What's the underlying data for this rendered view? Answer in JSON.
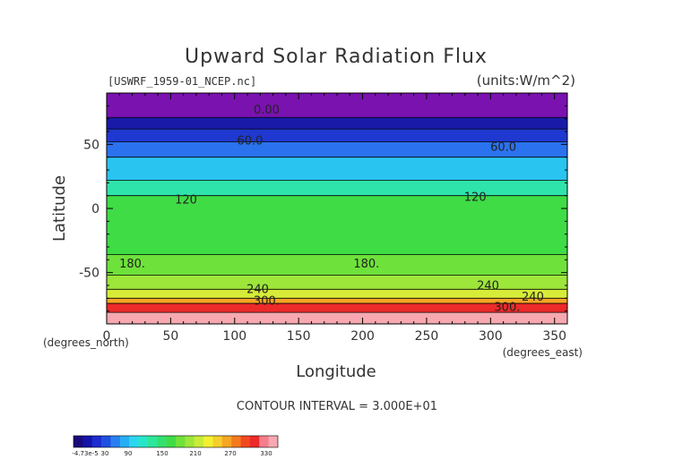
{
  "chart_data": {
    "type": "heatmap",
    "title": "Upward Solar Radiation Flux",
    "dataset": "[USWRF_1959-01_NCEP.nc]",
    "units": "(units:W/m^2)",
    "xlabel": "Longitude",
    "ylabel": "Latitude",
    "x_unit": "(degrees_east)",
    "y_unit": "(degrees_north)",
    "xlim": [
      0,
      360
    ],
    "ylim": [
      -90,
      90
    ],
    "x_ticks": [
      "0",
      "50",
      "100",
      "150",
      "200",
      "250",
      "300",
      "350"
    ],
    "y_ticks": [
      "50",
      "0",
      "-50"
    ],
    "contour_interval": "CONTOUR INTERVAL = 3.000E+01",
    "contour_labels": [
      {
        "text": "0.00",
        "lon": 125,
        "lat": 74
      },
      {
        "text": "60.0",
        "lon": 112,
        "lat": 50
      },
      {
        "text": "60.0",
        "lon": 310,
        "lat": 45
      },
      {
        "text": "120",
        "lon": 62,
        "lat": 4
      },
      {
        "text": "120",
        "lon": 288,
        "lat": 6
      },
      {
        "text": "180.",
        "lon": 20,
        "lat": -46
      },
      {
        "text": "180.",
        "lon": 203,
        "lat": -46
      },
      {
        "text": "240",
        "lon": 118,
        "lat": -66
      },
      {
        "text": "300.",
        "lon": 125,
        "lat": -75
      },
      {
        "text": "240",
        "lon": 298,
        "lat": -63
      },
      {
        "text": "240",
        "lon": 333,
        "lat": -72
      },
      {
        "text": "300.",
        "lon": 313,
        "lat": -80
      }
    ],
    "colorbar": {
      "labels": [
        "-4.73e-5",
        "30",
        "90",
        "150",
        "210",
        "270",
        "330"
      ],
      "colors": [
        "#1a0a7a",
        "#1414a8",
        "#1c2ccf",
        "#1f4fe0",
        "#2a7ff0",
        "#27aef5",
        "#2bd6f0",
        "#27e6c8",
        "#2ee69a",
        "#33e070",
        "#3fdc46",
        "#6ee13a",
        "#9de63a",
        "#c9ec38",
        "#f2f032",
        "#f5cf2c",
        "#f5a624",
        "#f47a1e",
        "#f24a1e",
        "#ec2a2a",
        "#f57d8c",
        "#f7a8b0"
      ]
    },
    "bands": [
      {
        "lat_top": 90,
        "lat_bot": 71,
        "value": 0,
        "color": "#7a12b0"
      },
      {
        "lat_top": 71,
        "lat_bot": 62,
        "value": 15,
        "color": "#1a1aa8"
      },
      {
        "lat_top": 62,
        "lat_bot": 52,
        "value": 45,
        "color": "#1f38cf"
      },
      {
        "lat_top": 52,
        "lat_bot": 40,
        "value": 75,
        "color": "#2a72ee"
      },
      {
        "lat_top": 40,
        "lat_bot": 22,
        "value": 105,
        "color": "#29c4f0"
      },
      {
        "lat_top": 22,
        "lat_bot": 10,
        "value": 120,
        "color": "#2ee4aa"
      },
      {
        "lat_top": 10,
        "lat_bot": -36,
        "value": 150,
        "color": "#3fdc46"
      },
      {
        "lat_top": -36,
        "lat_bot": -52,
        "value": 180,
        "color": "#6ee13a"
      },
      {
        "lat_top": -52,
        "lat_bot": -63,
        "value": 195,
        "color": "#9de63a"
      },
      {
        "lat_top": -63,
        "lat_bot": -70,
        "value": 225,
        "color": "#d6ec38"
      },
      {
        "lat_top": -70,
        "lat_bot": -74,
        "value": 255,
        "color": "#f5a624"
      },
      {
        "lat_top": -74,
        "lat_bot": -81,
        "value": 300,
        "color": "#ec2a2a"
      },
      {
        "lat_top": -81,
        "lat_bot": -90,
        "value": 330,
        "color": "#f7a8b0"
      }
    ]
  }
}
